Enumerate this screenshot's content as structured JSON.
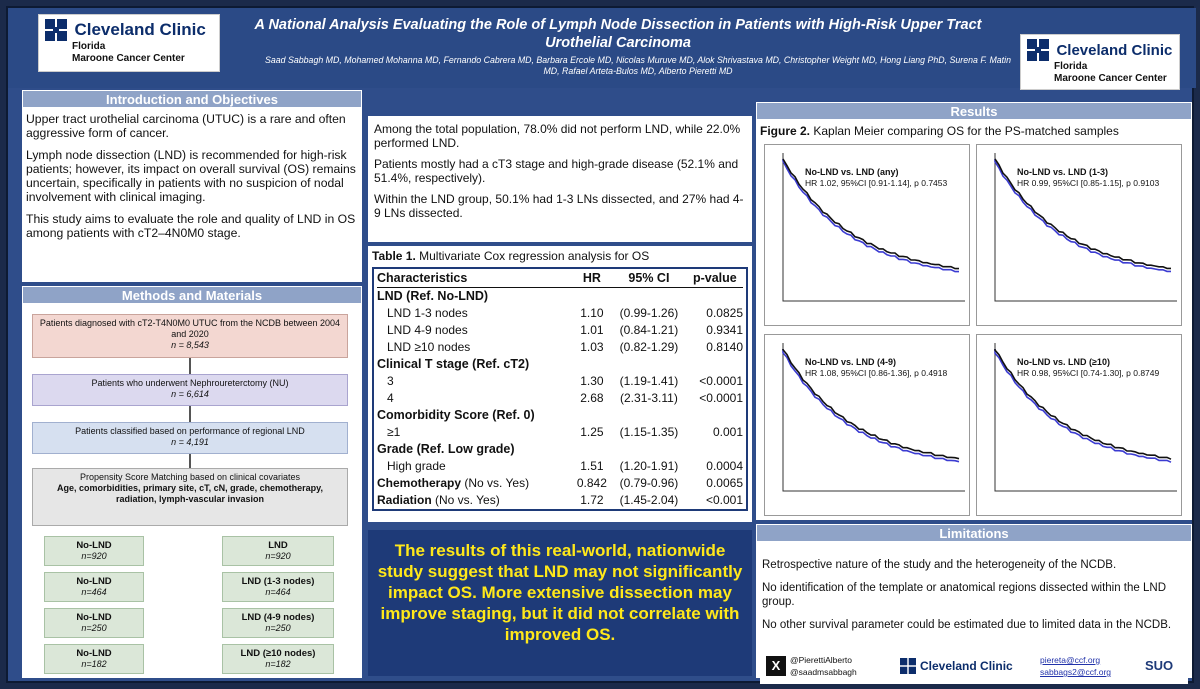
{
  "header": {
    "logo_name": "Cleveland Clinic",
    "logo_sub1": "Florida",
    "logo_sub2": "Maroone Cancer Center",
    "title": "A National Analysis Evaluating the Role of Lymph Node Dissection in Patients with High-Risk Upper Tract Urothelial Carcinoma",
    "authors": "Saad Sabbagh MD, Mohamed Mohanna MD, Fernando Cabrera MD, Barbara Ercole MD, Nicolas Muruve MD, Alok Shrivastava MD, Christopher Weight MD, Hong Liang PhD, Surena F. Matin MD, Rafael Arteta-Bulos MD, Alberto Pieretti MD"
  },
  "intro": {
    "heading": "Introduction and Objectives",
    "p1": "Upper tract urothelial carcinoma (UTUC) is a rare and often aggressive form of cancer.",
    "p2": "Lymph node dissection (LND) is recommended for high-risk patients; however, its impact on overall survival (OS) remains uncertain, specifically in patients with no suspicion of nodal involvement with clinical imaging.",
    "p3": "This study aims to evaluate the role and quality of LND in OS among patients with cT2–4N0M0 stage."
  },
  "methods": {
    "heading": "Methods and Materials",
    "box1": "Patients diagnosed with cT2-T4N0M0 UTUC from the NCDB between 2004 and 2020",
    "box1_n": "n = 8,543",
    "box2": "Patients who underwent Nephroureterctomy (NU)",
    "box2_n": "n = 6,614",
    "box3": "Patients classified based on performance of regional LND",
    "box3_n": "n = 4,191",
    "box4": "Propensity Score Matching based on clinical covariates",
    "box4_b": "Age, comorbidities, primary site, cT, cN, grade, chemotherapy, radiation, lymph-vascular invasion",
    "pairs": [
      {
        "left": "No-LND",
        "left_n": "n=920",
        "right": "LND",
        "right_n": "n=920"
      },
      {
        "left": "No-LND",
        "left_n": "n=464",
        "right": "LND (1-3 nodes)",
        "right_n": "n=464"
      },
      {
        "left": "No-LND",
        "left_n": "n=250",
        "right": "LND (4-9 nodes)",
        "right_n": "n=250"
      },
      {
        "left": "No-LND",
        "left_n": "n=182",
        "right": "LND (≥10 nodes)",
        "right_n": "n=182"
      }
    ]
  },
  "results": {
    "heading": "Results",
    "p1": "Among the total population, 78.0% did not perform LND, while 22.0% performed LND.",
    "p2": "Patients mostly had a cT3 stage and high-grade disease (52.1% and 51.4%, respectively).",
    "p3": "Within the LND group, 50.1% had 1-3 LNs dissected, and 27% had 4-9 LNs dissected.",
    "table_caption_b": "Table 1.",
    "table_caption": "Multivariate Cox regression analysis for OS",
    "table_headers": [
      "Characteristics",
      "HR",
      "95% CI",
      "p-value"
    ],
    "table_rows": [
      {
        "type": "group",
        "label": "LND (Ref. No-LND)"
      },
      {
        "type": "row",
        "label": "LND 1-3 nodes",
        "hr": "1.10",
        "ci": "(0.99-1.26)",
        "p": "0.0825"
      },
      {
        "type": "row",
        "label": "LND 4-9 nodes",
        "hr": "1.01",
        "ci": "(0.84-1.21)",
        "p": "0.9341"
      },
      {
        "type": "row",
        "label": "LND ≥10 nodes",
        "hr": "1.03",
        "ci": "(0.82-1.29)",
        "p": "0.8140"
      },
      {
        "type": "group",
        "label": "Clinical T stage (Ref. cT2)"
      },
      {
        "type": "row",
        "label": "3",
        "hr": "1.30",
        "ci": "(1.19-1.41)",
        "p": "<0.0001"
      },
      {
        "type": "row",
        "label": "4",
        "hr": "2.68",
        "ci": "(2.31-3.11)",
        "p": "<0.0001"
      },
      {
        "type": "group",
        "label": "Comorbidity Score (Ref. 0)"
      },
      {
        "type": "row",
        "label": "≥1",
        "hr": "1.25",
        "ci": "(1.15-1.35)",
        "p": "0.001"
      },
      {
        "type": "group",
        "label": "Grade (Ref. Low grade)"
      },
      {
        "type": "row",
        "label": "High grade",
        "hr": "1.51",
        "ci": "(1.20-1.91)",
        "p": "0.0004"
      },
      {
        "type": "grouprow",
        "label": "Chemotherapy",
        "label2": "(No vs. Yes)",
        "hr": "0.842",
        "ci": "(0.79-0.96)",
        "p": "0.0065"
      },
      {
        "type": "grouprow",
        "label": "Radiation",
        "label2": "(No vs. Yes)",
        "hr": "1.72",
        "ci": "(1.45-2.04)",
        "p": "<0.001"
      }
    ],
    "callout": "The results of this real-world, nationwide study suggest that LND may not significantly impact OS. More extensive dissection may improve staging, but it did not correlate with improved OS."
  },
  "figure": {
    "caption_b": "Figure 2.",
    "caption": "Kaplan Meier comparing OS for the PS-matched samples",
    "panels": [
      {
        "title": "No-LND vs. LND (any)",
        "stats": "HR 1.02, 95%CI [0.91-1.14], p 0.7453"
      },
      {
        "title": "No-LND vs. LND (1-3)",
        "stats": "HR 0.99, 95%CI [0.85-1.15], p 0.9103"
      },
      {
        "title": "No-LND vs. LND (4-9)",
        "stats": "HR 1.08, 95%CI [0.86-1.36], p 0.4918"
      },
      {
        "title": "No-LND vs. LND (≥10)",
        "stats": "HR 0.98, 95%CI [0.74-1.30], p 0.8749"
      }
    ]
  },
  "limitations": {
    "heading": "Limitations",
    "p1": "Retrospective nature of the study and the heterogeneity of the NCDB.",
    "p2": "No identification of the template or anatomical regions dissected within the LND group.",
    "p3": "No other survival parameter could be estimated due to limited data in the NCDB."
  },
  "footer": {
    "handle1": "@PierettiAlberto",
    "handle2": "@saadmsabbagh",
    "email1": "piereta@ccf.org",
    "email2": "sabbags2@ccf.org",
    "logo2": "SUO"
  },
  "colors": {
    "accent": "#2f4d8a",
    "callout_text": "#ffe81a",
    "km_nolnd": "#111111",
    "km_lnd": "#3b3bd1"
  }
}
